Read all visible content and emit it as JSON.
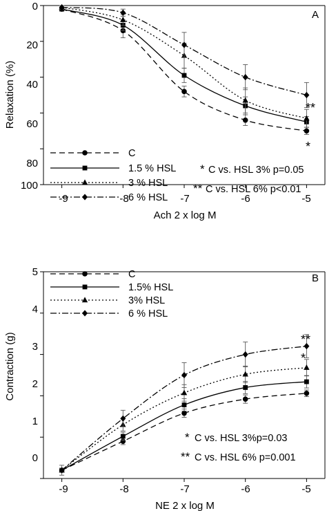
{
  "chart_data": [
    {
      "panel_label": "A",
      "type": "line",
      "x": [
        -9,
        -8,
        -7,
        -6,
        -5
      ],
      "xticks": [
        "-9",
        "-8",
        "-7",
        "-6",
        "-5"
      ],
      "xlabel": "Ach 2 x log M",
      "ylabel": "Relaxation (%)",
      "yticks": [
        "0",
        "20",
        "40",
        "60",
        "80",
        "100"
      ],
      "xlim": [
        -9.3,
        -4.7
      ],
      "ylim": [
        0,
        100
      ],
      "y_inverted": true,
      "legend_position": "bottom-left",
      "series": [
        {
          "name": "C",
          "values": [
            2,
            14,
            48,
            64,
            70
          ],
          "errors": [
            1,
            4,
            3,
            3,
            2
          ],
          "marker": "circle",
          "dash": "8,5"
        },
        {
          "name": "1.5 % HSL",
          "values": [
            2,
            11,
            39,
            56,
            65
          ],
          "errors": [
            1,
            3,
            4,
            5,
            3
          ],
          "marker": "square",
          "dash": ""
        },
        {
          "name": "3 % HSL",
          "values": [
            1,
            8,
            28,
            53,
            63
          ],
          "errors": [
            1,
            3,
            7,
            7,
            5
          ],
          "marker": "triangle",
          "dash": "2,3"
        },
        {
          "name": "6 % HSL",
          "values": [
            1,
            4,
            22,
            40,
            50
          ],
          "errors": [
            1,
            2,
            7,
            7,
            7
          ],
          "marker": "diamond",
          "dash": "9,3,2,3"
        }
      ],
      "endpoint_marks": [
        "*",
        "",
        "",
        "**"
      ],
      "annotations": [
        {
          "star": "*",
          "text": "C vs. HSL 3% p=0.05"
        },
        {
          "star": "**",
          "text": "C vs. HSL 6% p<0.01"
        }
      ]
    },
    {
      "panel_label": "B",
      "type": "line",
      "x": [
        -9,
        -8,
        -7,
        -6,
        -5
      ],
      "xticks": [
        "-9",
        "-8",
        "-7",
        "-6",
        "-5"
      ],
      "xlabel": "NE 2 x log M",
      "ylabel": "Contraction (g)",
      "yticks": [
        "0",
        "1",
        "2",
        "3",
        "4",
        "5"
      ],
      "xlim": [
        -9.3,
        -4.7
      ],
      "ylim": [
        0,
        5
      ],
      "y_inverted": false,
      "legend_position": "top-left",
      "series": [
        {
          "name": "C",
          "values": [
            0.2,
            0.9,
            1.58,
            1.92,
            2.06
          ],
          "errors": [
            0.05,
            0.08,
            0.1,
            0.1,
            0.08
          ],
          "marker": "circle",
          "dash": "8,5"
        },
        {
          "name": "1.5% HSL",
          "values": [
            0.2,
            1.02,
            1.78,
            2.2,
            2.34
          ],
          "errors": [
            0.05,
            0.1,
            0.15,
            0.15,
            0.15
          ],
          "marker": "square",
          "dash": ""
        },
        {
          "name": "3% HSL",
          "values": [
            0.2,
            1.3,
            2.07,
            2.52,
            2.68
          ],
          "errors": [
            0.05,
            0.15,
            0.2,
            0.2,
            0.2
          ],
          "marker": "triangle",
          "dash": "2,3"
        },
        {
          "name": "6 % HSL",
          "values": [
            0.2,
            1.45,
            2.5,
            3.0,
            3.2
          ],
          "errors": [
            0.12,
            0.2,
            0.3,
            0.3,
            0.28
          ],
          "marker": "diamond",
          "dash": "9,3,2,3"
        }
      ],
      "endpoint_marks": [
        "",
        "",
        "*",
        "**"
      ],
      "annotations": [
        {
          "star": "*",
          "text": "C vs. HSL 3%p=0.03"
        },
        {
          "star": "**",
          "text": "C vs. HSL 6% p=0.001"
        }
      ]
    }
  ]
}
